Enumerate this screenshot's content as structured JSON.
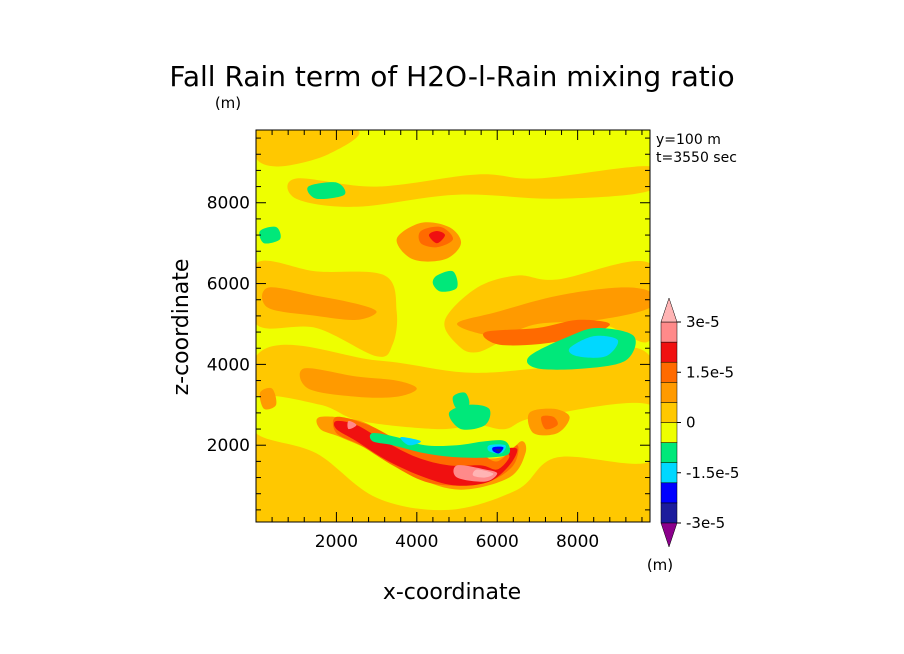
{
  "chart_data": {
    "type": "heatmap",
    "title": "Fall Rain term of H2O-l-Rain mixing ratio",
    "y_unit": "(m)",
    "xlabel": "x-coordinate",
    "ylabel": "z-coordinate",
    "annotations": [
      "y=100 m",
      "t=3550 sec"
    ],
    "xlim": [
      0,
      9800
    ],
    "ylim": [
      100,
      9800
    ],
    "x_ticks": [
      2000,
      4000,
      6000,
      8000
    ],
    "y_ticks": [
      2000,
      4000,
      6000,
      8000
    ],
    "x_tick_labels": [
      "2000",
      "4000",
      "6000",
      "8000"
    ],
    "y_tick_labels": [
      "2000",
      "4000",
      "6000",
      "8000"
    ],
    "background_level": 0,
    "colorbar": {
      "unit": "(m)",
      "levels": [
        {
          "value": -3e-05,
          "color": "#8b008b"
        },
        {
          "value": -2.25e-05,
          "color": "#1c1c9c"
        },
        {
          "value": -2e-05,
          "color": "#0000ff"
        },
        {
          "value": -1.5e-05,
          "color": "#00d8ff"
        },
        {
          "value": -1e-05,
          "color": "#00e87a"
        },
        {
          "value": 0,
          "color": "#eeff00"
        },
        {
          "value": 5e-06,
          "color": "#ffc800"
        },
        {
          "value": 1e-05,
          "color": "#ff9a00"
        },
        {
          "value": 1.5e-05,
          "color": "#ff6a00"
        },
        {
          "value": 2e-05,
          "color": "#f01010"
        },
        {
          "value": 2.5e-05,
          "color": "#ff8a8a"
        },
        {
          "value": 3e-05,
          "color": "#ffb4b4"
        }
      ],
      "labels": [
        {
          "value": 3e-05,
          "text": "3e-5"
        },
        {
          "value": 1.5e-05,
          "text": "1.5e-5"
        },
        {
          "value": 0,
          "text": "0"
        },
        {
          "value": -1.5e-05,
          "text": "-1.5e-5"
        },
        {
          "value": -3e-05,
          "text": "-3e-5"
        }
      ]
    },
    "regions": [
      {
        "value": 5e-06,
        "points": [
          [
            0,
            9800
          ],
          [
            2500,
            9800
          ],
          [
            1800,
            9200
          ],
          [
            600,
            8900
          ],
          [
            0,
            9100
          ]
        ]
      },
      {
        "value": 5e-06,
        "points": [
          [
            1000,
            8600
          ],
          [
            3000,
            8400
          ],
          [
            5500,
            8700
          ],
          [
            7000,
            8600
          ],
          [
            9800,
            8900
          ],
          [
            9800,
            8300
          ],
          [
            7500,
            8100
          ],
          [
            5000,
            8200
          ],
          [
            2500,
            7900
          ],
          [
            1000,
            8100
          ]
        ]
      },
      {
        "value": 5e-06,
        "points": [
          [
            0,
            6500
          ],
          [
            1500,
            6300
          ],
          [
            3200,
            6200
          ],
          [
            3500,
            5300
          ],
          [
            3400,
            4500
          ],
          [
            3000,
            4200
          ],
          [
            1500,
            4900
          ],
          [
            0,
            5000
          ]
        ]
      },
      {
        "value": 5e-06,
        "points": [
          [
            4700,
            5100
          ],
          [
            5500,
            5900
          ],
          [
            6500,
            6200
          ],
          [
            7500,
            6100
          ],
          [
            9800,
            6500
          ],
          [
            9800,
            4600
          ],
          [
            8500,
            5000
          ],
          [
            6500,
            4700
          ],
          [
            5500,
            4300
          ],
          [
            5000,
            4500
          ]
        ]
      },
      {
        "value": 5e-06,
        "points": [
          [
            0,
            4200
          ],
          [
            3000,
            4100
          ],
          [
            5200,
            3800
          ],
          [
            7000,
            3900
          ],
          [
            9800,
            4200
          ],
          [
            9800,
            100
          ],
          [
            0,
            100
          ]
        ]
      },
      {
        "value": 0,
        "points": [
          [
            0,
            3200
          ],
          [
            1600,
            3000
          ],
          [
            2600,
            2600
          ],
          [
            4500,
            2400
          ],
          [
            5500,
            2500
          ],
          [
            6200,
            2400
          ],
          [
            7000,
            2700
          ],
          [
            9800,
            3000
          ],
          [
            9800,
            1600
          ],
          [
            7500,
            1700
          ],
          [
            6500,
            900
          ],
          [
            4800,
            400
          ],
          [
            3000,
            700
          ],
          [
            1500,
            1800
          ],
          [
            0,
            2300
          ]
        ]
      },
      {
        "value": 1e-05,
        "points": [
          [
            300,
            5900
          ],
          [
            1500,
            5700
          ],
          [
            2500,
            5500
          ],
          [
            3000,
            5300
          ],
          [
            2500,
            5100
          ],
          [
            1500,
            5200
          ],
          [
            300,
            5400
          ]
        ]
      },
      {
        "value": 1e-05,
        "points": [
          [
            5000,
            5000
          ],
          [
            6000,
            5300
          ],
          [
            7500,
            5700
          ],
          [
            9000,
            5900
          ],
          [
            9800,
            5800
          ],
          [
            9800,
            5400
          ],
          [
            8500,
            5100
          ],
          [
            7000,
            5000
          ],
          [
            6000,
            4700
          ]
        ]
      },
      {
        "value": 1e-05,
        "points": [
          [
            3500,
            7100
          ],
          [
            4100,
            7500
          ],
          [
            4800,
            7400
          ],
          [
            5100,
            7000
          ],
          [
            4700,
            6600
          ],
          [
            3900,
            6600
          ]
        ]
      },
      {
        "value": 1e-05,
        "points": [
          [
            1200,
            3900
          ],
          [
            2500,
            3700
          ],
          [
            3500,
            3600
          ],
          [
            4000,
            3400
          ],
          [
            3500,
            3200
          ],
          [
            2500,
            3200
          ],
          [
            1300,
            3400
          ]
        ]
      },
      {
        "value": 1e-05,
        "points": [
          [
            6800,
            2800
          ],
          [
            7400,
            2900
          ],
          [
            7800,
            2700
          ],
          [
            7500,
            2300
          ],
          [
            6900,
            2300
          ]
        ]
      },
      {
        "value": 1e-05,
        "points": [
          [
            100,
            3300
          ],
          [
            400,
            3400
          ],
          [
            500,
            3000
          ],
          [
            200,
            2900
          ]
        ]
      },
      {
        "value": 1e-05,
        "points": [
          [
            1600,
            2700
          ],
          [
            2600,
            2600
          ],
          [
            3300,
            2200
          ],
          [
            4300,
            1800
          ],
          [
            5200,
            1700
          ],
          [
            6100,
            1700
          ],
          [
            6600,
            2100
          ],
          [
            6700,
            1800
          ],
          [
            6300,
            1200
          ],
          [
            5100,
            900
          ],
          [
            4000,
            1200
          ],
          [
            3000,
            1800
          ],
          [
            2100,
            2200
          ],
          [
            1600,
            2400
          ]
        ]
      },
      {
        "value": 1.5e-05,
        "points": [
          [
            4100,
            7300
          ],
          [
            4600,
            7400
          ],
          [
            4900,
            7100
          ],
          [
            4500,
            6900
          ],
          [
            4100,
            7000
          ]
        ]
      },
      {
        "value": 1.5e-05,
        "points": [
          [
            5700,
            4800
          ],
          [
            7000,
            4900
          ],
          [
            8000,
            5100
          ],
          [
            8800,
            5000
          ],
          [
            8200,
            4700
          ],
          [
            7000,
            4500
          ],
          [
            6000,
            4500
          ]
        ]
      },
      {
        "value": 1.5e-05,
        "points": [
          [
            2000,
            2700
          ],
          [
            2800,
            2500
          ],
          [
            3600,
            2100
          ],
          [
            4500,
            1800
          ],
          [
            5500,
            1800
          ],
          [
            6000,
            1600
          ],
          [
            6500,
            2000
          ],
          [
            6400,
            1500
          ],
          [
            5800,
            1100
          ],
          [
            5000,
            1000
          ],
          [
            4200,
            1100
          ],
          [
            3400,
            1500
          ],
          [
            2600,
            2000
          ],
          [
            2000,
            2300
          ]
        ]
      },
      {
        "value": 1.5e-05,
        "points": [
          [
            7100,
            2700
          ],
          [
            7400,
            2700
          ],
          [
            7500,
            2500
          ],
          [
            7200,
            2400
          ]
        ]
      },
      {
        "value": 2e-05,
        "points": [
          [
            2000,
            2600
          ],
          [
            2500,
            2500
          ],
          [
            3200,
            2100
          ],
          [
            4000,
            1700
          ],
          [
            4800,
            1500
          ],
          [
            5600,
            1500
          ],
          [
            6000,
            1400
          ],
          [
            6300,
            1700
          ],
          [
            6200,
            1900
          ],
          [
            6500,
            1900
          ],
          [
            6300,
            1500
          ],
          [
            5800,
            1100
          ],
          [
            5000,
            1000
          ],
          [
            4200,
            1200
          ],
          [
            3300,
            1600
          ],
          [
            2500,
            2100
          ],
          [
            2000,
            2400
          ]
        ]
      },
      {
        "value": 2e-05,
        "points": [
          [
            4300,
            7200
          ],
          [
            4500,
            7300
          ],
          [
            4700,
            7200
          ],
          [
            4500,
            7000
          ]
        ]
      },
      {
        "value": 2.5e-05,
        "points": [
          [
            2300,
            2600
          ],
          [
            2500,
            2500
          ],
          [
            2300,
            2400
          ]
        ]
      },
      {
        "value": 2.5e-05,
        "points": [
          [
            5000,
            1500
          ],
          [
            5700,
            1400
          ],
          [
            6000,
            1300
          ],
          [
            5700,
            1100
          ],
          [
            5000,
            1200
          ]
        ]
      },
      {
        "value": 3e-05,
        "points": [
          [
            5500,
            1400
          ],
          [
            5900,
            1300
          ],
          [
            5700,
            1200
          ],
          [
            5400,
            1250
          ]
        ]
      },
      {
        "value": -1e-05,
        "points": [
          [
            1300,
            8400
          ],
          [
            2000,
            8500
          ],
          [
            2200,
            8200
          ],
          [
            1500,
            8100
          ]
        ]
      },
      {
        "value": -1e-05,
        "points": [
          [
            100,
            7300
          ],
          [
            500,
            7400
          ],
          [
            600,
            7100
          ],
          [
            200,
            7000
          ]
        ]
      },
      {
        "value": -1e-05,
        "points": [
          [
            4500,
            6200
          ],
          [
            4900,
            6300
          ],
          [
            5000,
            5900
          ],
          [
            4600,
            5800
          ],
          [
            4400,
            6000
          ]
        ]
      },
      {
        "value": -1e-05,
        "points": [
          [
            6800,
            4200
          ],
          [
            7800,
            4700
          ],
          [
            8500,
            4900
          ],
          [
            9400,
            4700
          ],
          [
            9200,
            4100
          ],
          [
            8200,
            3900
          ],
          [
            7000,
            3900
          ]
        ]
      },
      {
        "value": -1e-05,
        "points": [
          [
            4900,
            3200
          ],
          [
            5200,
            3300
          ],
          [
            5300,
            3000
          ],
          [
            5000,
            2900
          ]
        ]
      },
      {
        "value": -1e-05,
        "points": [
          [
            4800,
            2800
          ],
          [
            5300,
            3000
          ],
          [
            5800,
            2900
          ],
          [
            5700,
            2500
          ],
          [
            5100,
            2400
          ]
        ]
      },
      {
        "value": -1e-05,
        "points": [
          [
            2900,
            2300
          ],
          [
            3500,
            2200
          ],
          [
            4200,
            2000
          ],
          [
            5000,
            2000
          ],
          [
            5700,
            2100
          ],
          [
            6200,
            2100
          ],
          [
            6300,
            1800
          ],
          [
            5900,
            1700
          ],
          [
            5000,
            1700
          ],
          [
            4200,
            1800
          ],
          [
            3400,
            2000
          ],
          [
            2900,
            2100
          ]
        ]
      },
      {
        "value": -1.5e-05,
        "points": [
          [
            7800,
            4400
          ],
          [
            8400,
            4700
          ],
          [
            9000,
            4600
          ],
          [
            8700,
            4200
          ],
          [
            8000,
            4200
          ]
        ]
      },
      {
        "value": -1.5e-05,
        "points": [
          [
            3600,
            2200
          ],
          [
            4100,
            2100
          ],
          [
            3800,
            2000
          ]
        ]
      },
      {
        "value": -1.5e-05,
        "points": [
          [
            5800,
            2000
          ],
          [
            6200,
            2000
          ],
          [
            6100,
            1800
          ],
          [
            5800,
            1850
          ]
        ]
      },
      {
        "value": -2e-05,
        "points": [
          [
            5900,
            1950
          ],
          [
            6150,
            1950
          ],
          [
            6050,
            1800
          ],
          [
            5900,
            1850
          ]
        ]
      },
      {
        "value": -2.25e-05,
        "points": [
          [
            5950,
            1900
          ],
          [
            6100,
            1900
          ],
          [
            6050,
            1830
          ]
        ]
      }
    ]
  }
}
